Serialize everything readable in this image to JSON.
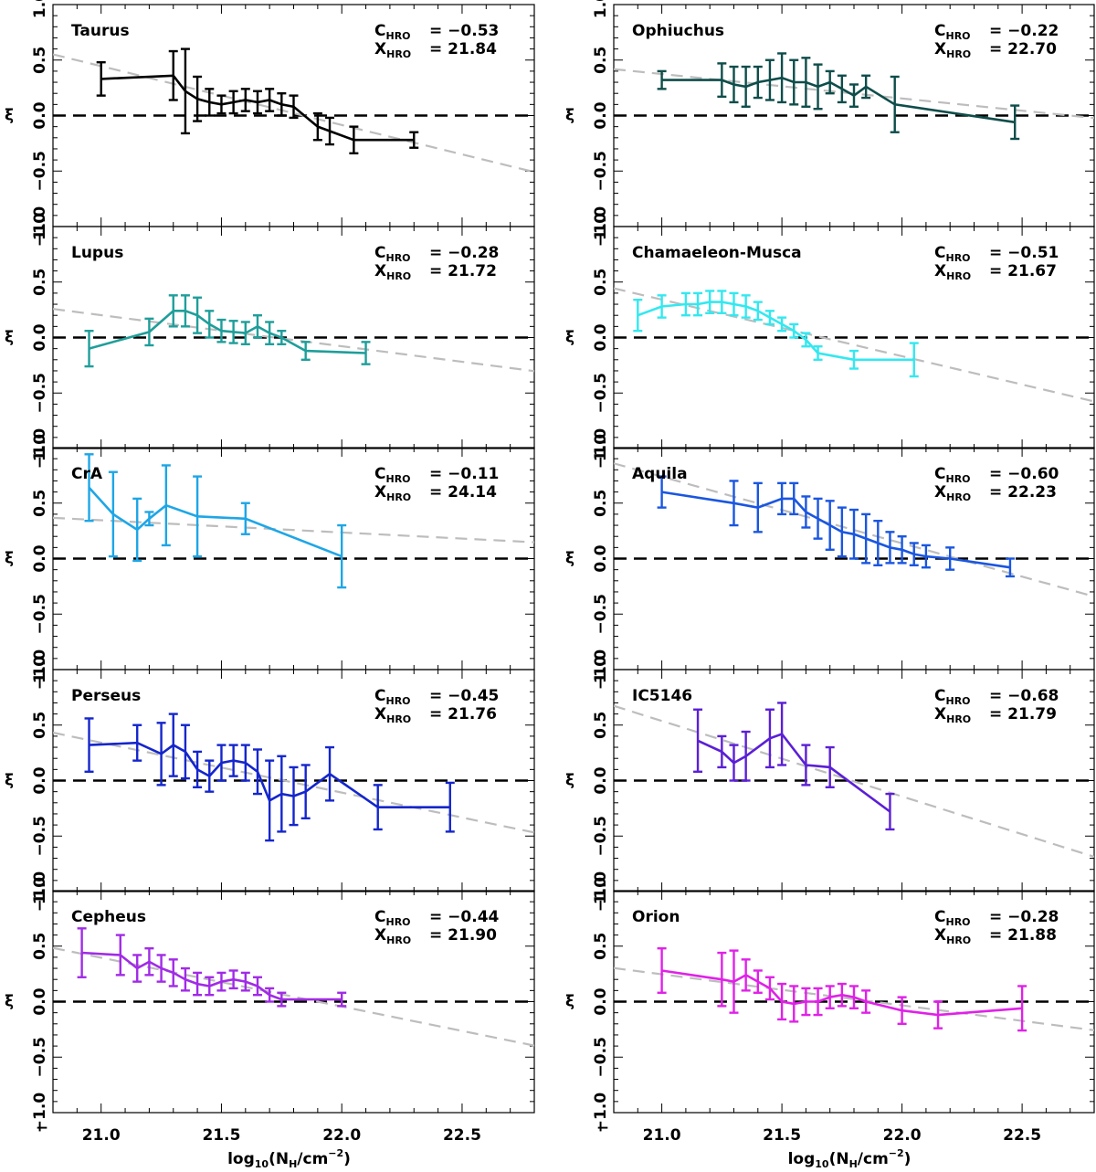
{
  "xlabel_main": "log",
  "xlabel_sub": "10",
  "xlabel_rest": "(N",
  "xlabel_sub2": "H",
  "xlabel_rest2": "/cm",
  "xlabel_sup": "−2",
  "xlabel_end": ")",
  "ylabel": "ξ",
  "chart_data": [
    {
      "type": "line",
      "title": "Taurus",
      "color": "#000000",
      "c_hro": "−0.53",
      "x_hro": "21.84",
      "slope": -0.53,
      "intercept": 21.84,
      "xlim": [
        20.8,
        22.8
      ],
      "ylim": [
        -1.0,
        1.0
      ],
      "x": [
        21.0,
        21.3,
        21.35,
        21.4,
        21.45,
        21.5,
        21.55,
        21.6,
        21.65,
        21.7,
        21.75,
        21.8,
        21.9,
        21.95,
        22.05,
        22.3
      ],
      "y": [
        0.33,
        0.36,
        0.22,
        0.15,
        0.12,
        0.1,
        0.12,
        0.14,
        0.12,
        0.14,
        0.1,
        0.08,
        -0.1,
        -0.14,
        -0.22,
        -0.22
      ],
      "err": [
        0.15,
        0.22,
        0.38,
        0.2,
        0.12,
        0.08,
        0.1,
        0.1,
        0.1,
        0.1,
        0.1,
        0.1,
        0.12,
        0.12,
        0.12,
        0.07
      ]
    },
    {
      "type": "line",
      "title": "Ophiuchus",
      "color": "#0e4d4a",
      "c_hro": "−0.22",
      "x_hro": "22.70",
      "slope": -0.22,
      "intercept": 22.7,
      "xlim": [
        20.8,
        22.8
      ],
      "ylim": [
        -1.0,
        1.0
      ],
      "x": [
        21.0,
        21.25,
        21.3,
        21.35,
        21.4,
        21.45,
        21.5,
        21.55,
        21.6,
        21.65,
        21.7,
        21.75,
        21.8,
        21.85,
        21.97,
        22.47
      ],
      "y": [
        0.32,
        0.32,
        0.28,
        0.26,
        0.3,
        0.32,
        0.34,
        0.3,
        0.3,
        0.26,
        0.3,
        0.24,
        0.18,
        0.26,
        0.1,
        -0.06
      ],
      "err": [
        0.08,
        0.15,
        0.16,
        0.18,
        0.14,
        0.18,
        0.22,
        0.2,
        0.22,
        0.2,
        0.1,
        0.12,
        0.1,
        0.1,
        0.25,
        0.15
      ]
    },
    {
      "type": "line",
      "title": "Lupus",
      "color": "#1f9e9a",
      "c_hro": "−0.28",
      "x_hro": "21.72",
      "slope": -0.28,
      "intercept": 21.72,
      "xlim": [
        20.8,
        22.8
      ],
      "ylim": [
        -1.0,
        1.0
      ],
      "x": [
        20.95,
        21.2,
        21.3,
        21.35,
        21.4,
        21.45,
        21.5,
        21.55,
        21.6,
        21.65,
        21.7,
        21.75,
        21.85,
        22.1
      ],
      "y": [
        -0.1,
        0.05,
        0.24,
        0.24,
        0.2,
        0.12,
        0.06,
        0.05,
        0.04,
        0.1,
        0.04,
        0.0,
        -0.12,
        -0.14
      ],
      "err": [
        0.16,
        0.12,
        0.14,
        0.14,
        0.16,
        0.12,
        0.1,
        0.1,
        0.1,
        0.1,
        0.1,
        0.06,
        0.08,
        0.1
      ]
    },
    {
      "type": "line",
      "title": "Chamaeleon-Musca",
      "color": "#33e8f0",
      "c_hro": "−0.51",
      "x_hro": "21.67",
      "slope": -0.51,
      "intercept": 21.67,
      "xlim": [
        20.8,
        22.8
      ],
      "ylim": [
        -1.0,
        1.0
      ],
      "x": [
        20.9,
        21.0,
        21.1,
        21.15,
        21.2,
        21.25,
        21.3,
        21.35,
        21.4,
        21.45,
        21.5,
        21.55,
        21.6,
        21.65,
        21.8,
        22.05
      ],
      "y": [
        0.2,
        0.28,
        0.3,
        0.3,
        0.32,
        0.32,
        0.3,
        0.28,
        0.24,
        0.18,
        0.12,
        0.06,
        -0.02,
        -0.14,
        -0.2,
        -0.2
      ],
      "err": [
        0.14,
        0.1,
        0.1,
        0.1,
        0.1,
        0.1,
        0.1,
        0.1,
        0.08,
        0.06,
        0.06,
        0.06,
        0.06,
        0.06,
        0.08,
        0.15
      ]
    },
    {
      "type": "line",
      "title": "CrA",
      "color": "#1ea6e6",
      "c_hro": "−0.11",
      "x_hro": "24.14",
      "slope": -0.11,
      "intercept": 24.14,
      "xlim": [
        20.8,
        22.8
      ],
      "ylim": [
        -1.0,
        1.0
      ],
      "x": [
        20.95,
        21.05,
        21.15,
        21.2,
        21.27,
        21.4,
        21.6,
        22.0
      ],
      "y": [
        0.64,
        0.4,
        0.26,
        0.36,
        0.48,
        0.38,
        0.36,
        0.02
      ],
      "err": [
        0.3,
        0.38,
        0.28,
        0.06,
        0.36,
        0.36,
        0.14,
        0.28
      ]
    },
    {
      "type": "line",
      "title": "Aquila",
      "color": "#1a56e0",
      "c_hro": "−0.60",
      "x_hro": "22.23",
      "slope": -0.6,
      "intercept": 22.23,
      "xlim": [
        20.8,
        22.8
      ],
      "ylim": [
        -1.0,
        1.0
      ],
      "x": [
        21.0,
        21.3,
        21.4,
        21.5,
        21.55,
        21.6,
        21.65,
        21.7,
        21.75,
        21.8,
        21.85,
        21.9,
        21.95,
        22.0,
        22.05,
        22.1,
        22.2,
        22.45
      ],
      "y": [
        0.6,
        0.5,
        0.46,
        0.54,
        0.54,
        0.42,
        0.36,
        0.3,
        0.24,
        0.22,
        0.18,
        0.14,
        0.1,
        0.08,
        0.04,
        0.02,
        0.0,
        -0.08
      ],
      "err": [
        0.14,
        0.2,
        0.22,
        0.14,
        0.14,
        0.14,
        0.18,
        0.22,
        0.22,
        0.22,
        0.22,
        0.2,
        0.14,
        0.12,
        0.1,
        0.1,
        0.1,
        0.08
      ]
    },
    {
      "type": "line",
      "title": "Perseus",
      "color": "#1426cc",
      "c_hro": "−0.45",
      "x_hro": "21.76",
      "slope": -0.45,
      "intercept": 21.76,
      "xlim": [
        20.8,
        22.8
      ],
      "ylim": [
        -1.0,
        1.0
      ],
      "x": [
        20.95,
        21.15,
        21.25,
        21.3,
        21.35,
        21.4,
        21.45,
        21.5,
        21.55,
        21.6,
        21.65,
        21.7,
        21.75,
        21.8,
        21.85,
        21.95,
        22.15,
        22.45
      ],
      "y": [
        0.32,
        0.34,
        0.24,
        0.32,
        0.26,
        0.1,
        0.04,
        0.16,
        0.18,
        0.16,
        0.08,
        -0.18,
        -0.12,
        -0.14,
        -0.1,
        0.06,
        -0.24,
        -0.24
      ],
      "err": [
        0.24,
        0.16,
        0.28,
        0.28,
        0.24,
        0.16,
        0.14,
        0.16,
        0.14,
        0.16,
        0.2,
        0.36,
        0.34,
        0.26,
        0.24,
        0.24,
        0.2,
        0.22
      ]
    },
    {
      "type": "line",
      "title": "IC5146",
      "color": "#5b1fd6",
      "c_hro": "−0.68",
      "x_hro": "21.79",
      "slope": -0.68,
      "intercept": 21.79,
      "xlim": [
        20.8,
        22.8
      ],
      "ylim": [
        -1.0,
        1.0
      ],
      "x": [
        21.15,
        21.25,
        21.3,
        21.35,
        21.45,
        21.5,
        21.6,
        21.7,
        21.95
      ],
      "y": [
        0.36,
        0.26,
        0.16,
        0.22,
        0.38,
        0.42,
        0.14,
        0.12,
        -0.28
      ],
      "err": [
        0.28,
        0.14,
        0.16,
        0.22,
        0.26,
        0.28,
        0.18,
        0.18,
        0.16
      ]
    },
    {
      "type": "line",
      "title": "Cepheus",
      "color": "#a12be6",
      "c_hro": "−0.44",
      "x_hro": "21.90",
      "slope": -0.44,
      "intercept": 21.9,
      "xlim": [
        20.8,
        22.8
      ],
      "ylim": [
        -1.0,
        1.0
      ],
      "x": [
        20.92,
        21.08,
        21.15,
        21.2,
        21.25,
        21.3,
        21.35,
        21.4,
        21.45,
        21.5,
        21.55,
        21.6,
        21.65,
        21.7,
        21.75,
        22.0
      ],
      "y": [
        0.44,
        0.42,
        0.3,
        0.36,
        0.3,
        0.26,
        0.2,
        0.16,
        0.14,
        0.18,
        0.2,
        0.18,
        0.14,
        0.06,
        0.02,
        0.02
      ],
      "err": [
        0.22,
        0.18,
        0.12,
        0.12,
        0.12,
        0.12,
        0.1,
        0.1,
        0.08,
        0.08,
        0.08,
        0.08,
        0.08,
        0.06,
        0.06,
        0.06
      ]
    },
    {
      "type": "line",
      "title": "Orion",
      "color": "#e021e8",
      "c_hro": "−0.28",
      "x_hro": "21.88",
      "slope": -0.28,
      "intercept": 21.88,
      "xlim": [
        20.8,
        22.8
      ],
      "ylim": [
        -1.0,
        1.0
      ],
      "x": [
        21.0,
        21.25,
        21.3,
        21.35,
        21.4,
        21.45,
        21.5,
        21.55,
        21.6,
        21.65,
        21.7,
        21.75,
        21.8,
        21.85,
        22.0,
        22.15,
        22.5
      ],
      "y": [
        0.28,
        0.2,
        0.18,
        0.24,
        0.18,
        0.12,
        0.0,
        -0.02,
        0.0,
        0.0,
        0.04,
        0.06,
        0.04,
        0.0,
        -0.08,
        -0.12,
        -0.06
      ],
      "err": [
        0.2,
        0.24,
        0.28,
        0.14,
        0.1,
        0.1,
        0.16,
        0.16,
        0.12,
        0.12,
        0.1,
        0.1,
        0.1,
        0.1,
        0.12,
        0.12,
        0.2
      ]
    }
  ]
}
